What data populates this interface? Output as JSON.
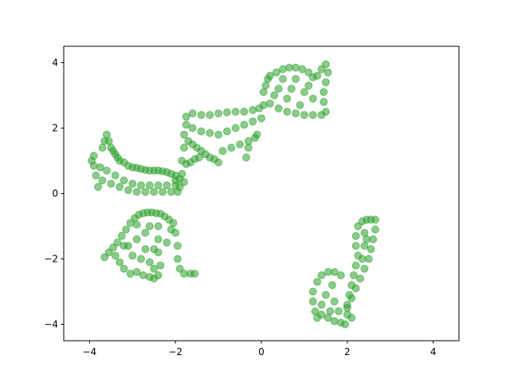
{
  "chart_data": {
    "type": "scatter",
    "title": "",
    "xlabel": "",
    "ylabel": "",
    "xlim": [
      -4.6,
      4.6
    ],
    "ylim": [
      -4.5,
      4.5
    ],
    "grid": false,
    "legend": "none",
    "x_ticks": [
      -4,
      -2,
      0,
      2,
      4
    ],
    "y_ticks": [
      -4,
      -2,
      0,
      2,
      4
    ],
    "x_tick_labels": [
      "−4",
      "−2",
      "0",
      "2",
      "4"
    ],
    "y_tick_labels": [
      "−4",
      "−2",
      "0",
      "2",
      "4"
    ],
    "series": [
      {
        "color": "#2ca02c",
        "alpha": 0.55,
        "points": [
          [
            -3.9,
            1.15
          ],
          [
            -3.95,
            1.0
          ],
          [
            -3.9,
            0.85
          ],
          [
            -3.85,
            0.55
          ],
          [
            -3.8,
            0.2
          ],
          [
            -3.75,
            0.8
          ],
          [
            -3.7,
            1.4
          ],
          [
            -3.65,
            1.6
          ],
          [
            -3.6,
            1.8
          ],
          [
            -3.55,
            1.6
          ],
          [
            -3.5,
            1.4
          ],
          [
            -3.45,
            1.3
          ],
          [
            -3.4,
            1.2
          ],
          [
            -3.35,
            1.1
          ],
          [
            -3.3,
            1.0
          ],
          [
            -3.2,
            0.95
          ],
          [
            -3.1,
            0.85
          ],
          [
            -3.0,
            0.8
          ],
          [
            -2.9,
            0.78
          ],
          [
            -2.8,
            0.75
          ],
          [
            -2.7,
            0.72
          ],
          [
            -2.6,
            0.7
          ],
          [
            -2.5,
            0.7
          ],
          [
            -2.4,
            0.7
          ],
          [
            -2.3,
            0.68
          ],
          [
            -2.2,
            0.65
          ],
          [
            -2.1,
            0.6
          ],
          [
            -2.0,
            0.55
          ],
          [
            -1.9,
            0.45
          ],
          [
            -1.8,
            0.35
          ],
          [
            -3.7,
            0.4
          ],
          [
            -3.5,
            0.3
          ],
          [
            -3.3,
            0.2
          ],
          [
            -3.1,
            0.1
          ],
          [
            -2.9,
            0.05
          ],
          [
            -2.7,
            0.05
          ],
          [
            -2.5,
            0.05
          ],
          [
            -2.3,
            0.05
          ],
          [
            -2.1,
            0.05
          ],
          [
            -1.95,
            0.05
          ],
          [
            -3.6,
            0.7
          ],
          [
            -3.4,
            0.55
          ],
          [
            -3.2,
            0.4
          ],
          [
            -3.0,
            0.3
          ],
          [
            -2.8,
            0.25
          ],
          [
            -2.6,
            0.25
          ],
          [
            -2.4,
            0.25
          ],
          [
            -2.2,
            0.25
          ],
          [
            -2.0,
            0.25
          ],
          [
            -1.85,
            0.6
          ],
          [
            -1.85,
            1.0
          ],
          [
            -1.8,
            1.4
          ],
          [
            -1.8,
            1.8
          ],
          [
            -1.75,
            2.1
          ],
          [
            -1.75,
            2.35
          ],
          [
            -1.6,
            2.45
          ],
          [
            -1.4,
            2.4
          ],
          [
            -1.2,
            2.4
          ],
          [
            -1.0,
            2.45
          ],
          [
            -0.8,
            2.48
          ],
          [
            -0.6,
            2.5
          ],
          [
            -0.4,
            2.5
          ],
          [
            -0.2,
            2.55
          ],
          [
            -0.05,
            2.6
          ],
          [
            0.05,
            2.7
          ],
          [
            -1.7,
            1.6
          ],
          [
            -1.6,
            1.5
          ],
          [
            -1.5,
            1.4
          ],
          [
            -1.4,
            1.3
          ],
          [
            -1.3,
            1.2
          ],
          [
            -1.2,
            1.1
          ],
          [
            -1.1,
            1.05
          ],
          [
            -1.0,
            0.95
          ],
          [
            -0.9,
            1.3
          ],
          [
            -0.7,
            1.4
          ],
          [
            -0.5,
            1.5
          ],
          [
            -0.3,
            1.6
          ],
          [
            -0.15,
            1.7
          ],
          [
            -1.6,
            2.0
          ],
          [
            -1.4,
            1.9
          ],
          [
            -1.2,
            1.85
          ],
          [
            -1.0,
            1.8
          ],
          [
            -0.8,
            1.9
          ],
          [
            -0.6,
            2.0
          ],
          [
            -0.4,
            2.1
          ],
          [
            -0.2,
            2.2
          ],
          [
            -0.35,
            1.1
          ],
          [
            -0.3,
            1.4
          ],
          [
            -0.1,
            1.8
          ],
          [
            0.0,
            2.3
          ],
          [
            -1.75,
            0.9
          ],
          [
            -1.65,
            0.95
          ],
          [
            -1.55,
            1.05
          ],
          [
            -1.45,
            1.1
          ],
          [
            -2.0,
            0.4
          ],
          [
            -1.9,
            0.2
          ],
          [
            0.05,
            3.1
          ],
          [
            0.1,
            3.3
          ],
          [
            0.15,
            3.5
          ],
          [
            0.2,
            3.6
          ],
          [
            0.35,
            3.7
          ],
          [
            0.5,
            3.8
          ],
          [
            0.65,
            3.85
          ],
          [
            0.8,
            3.85
          ],
          [
            0.95,
            3.8
          ],
          [
            1.1,
            3.7
          ],
          [
            1.2,
            3.55
          ],
          [
            1.3,
            3.6
          ],
          [
            1.4,
            3.8
          ],
          [
            1.5,
            3.95
          ],
          [
            1.55,
            3.7
          ],
          [
            1.5,
            3.4
          ],
          [
            1.45,
            3.1
          ],
          [
            1.45,
            2.8
          ],
          [
            1.5,
            2.5
          ],
          [
            1.4,
            2.4
          ],
          [
            1.2,
            2.4
          ],
          [
            1.0,
            2.4
          ],
          [
            0.8,
            2.45
          ],
          [
            0.6,
            2.5
          ],
          [
            0.4,
            2.6
          ],
          [
            0.2,
            2.75
          ],
          [
            0.4,
            3.2
          ],
          [
            0.7,
            3.2
          ],
          [
            1.0,
            3.1
          ],
          [
            1.2,
            2.9
          ],
          [
            0.9,
            2.7
          ],
          [
            0.6,
            2.9
          ],
          [
            0.3,
            3.0
          ],
          [
            0.8,
            3.5
          ],
          [
            1.1,
            3.3
          ],
          [
            0.5,
            3.5
          ],
          [
            -3.65,
            -1.95
          ],
          [
            -3.55,
            -1.8
          ],
          [
            -3.45,
            -1.65
          ],
          [
            -3.35,
            -1.5
          ],
          [
            -3.25,
            -1.3
          ],
          [
            -3.15,
            -1.1
          ],
          [
            -3.05,
            -0.9
          ],
          [
            -2.95,
            -0.75
          ],
          [
            -2.85,
            -0.65
          ],
          [
            -2.75,
            -0.6
          ],
          [
            -2.65,
            -0.58
          ],
          [
            -2.55,
            -0.58
          ],
          [
            -2.45,
            -0.6
          ],
          [
            -2.35,
            -0.62
          ],
          [
            -2.25,
            -0.7
          ],
          [
            -2.15,
            -0.8
          ],
          [
            -2.05,
            -0.9
          ],
          [
            -2.0,
            -1.2
          ],
          [
            -1.95,
            -1.6
          ],
          [
            -1.95,
            -2.0
          ],
          [
            -1.9,
            -2.3
          ],
          [
            -1.8,
            -2.45
          ],
          [
            -1.65,
            -2.45
          ],
          [
            -1.55,
            -2.45
          ],
          [
            -2.4,
            -1.0
          ],
          [
            -2.4,
            -1.4
          ],
          [
            -2.4,
            -1.8
          ],
          [
            -2.35,
            -2.2
          ],
          [
            -2.4,
            -2.5
          ],
          [
            -2.5,
            -2.6
          ],
          [
            -2.6,
            -2.55
          ],
          [
            -2.75,
            -2.5
          ],
          [
            -2.9,
            -2.4
          ],
          [
            -3.05,
            -2.45
          ],
          [
            -3.2,
            -2.3
          ],
          [
            -3.3,
            -2.1
          ],
          [
            -3.4,
            -1.9
          ],
          [
            -3.1,
            -1.6
          ],
          [
            -2.9,
            -1.4
          ],
          [
            -2.7,
            -1.2
          ],
          [
            -2.6,
            -1.0
          ],
          [
            -3.0,
            -1.9
          ],
          [
            -2.8,
            -2.0
          ],
          [
            -2.6,
            -2.1
          ],
          [
            -2.5,
            -1.7
          ],
          [
            -2.7,
            -1.7
          ],
          [
            -3.2,
            -1.6
          ],
          [
            -2.9,
            -0.95
          ],
          [
            -2.5,
            -2.3
          ],
          [
            -2.2,
            -1.5
          ],
          [
            -2.1,
            -1.1
          ],
          [
            1.2,
            -3.0
          ],
          [
            1.2,
            -3.3
          ],
          [
            1.25,
            -3.6
          ],
          [
            1.3,
            -3.8
          ],
          [
            1.4,
            -3.7
          ],
          [
            1.55,
            -3.8
          ],
          [
            1.7,
            -3.9
          ],
          [
            1.85,
            -3.95
          ],
          [
            1.95,
            -4.0
          ],
          [
            2.0,
            -3.7
          ],
          [
            2.0,
            -3.4
          ],
          [
            2.05,
            -3.1
          ],
          [
            2.1,
            -2.8
          ],
          [
            2.15,
            -2.5
          ],
          [
            2.2,
            -2.2
          ],
          [
            2.25,
            -1.9
          ],
          [
            2.2,
            -1.6
          ],
          [
            2.2,
            -1.3
          ],
          [
            2.25,
            -1.0
          ],
          [
            2.35,
            -0.85
          ],
          [
            2.45,
            -0.8
          ],
          [
            2.55,
            -0.8
          ],
          [
            2.65,
            -0.8
          ],
          [
            2.65,
            -1.1
          ],
          [
            2.6,
            -1.4
          ],
          [
            2.55,
            -1.7
          ],
          [
            2.5,
            -2.0
          ],
          [
            2.4,
            -2.3
          ],
          [
            2.3,
            -2.6
          ],
          [
            2.2,
            -2.9
          ],
          [
            2.1,
            -3.2
          ],
          [
            2.0,
            -3.5
          ],
          [
            1.4,
            -2.5
          ],
          [
            1.55,
            -2.4
          ],
          [
            1.7,
            -2.4
          ],
          [
            1.85,
            -2.5
          ],
          [
            1.3,
            -2.7
          ],
          [
            1.5,
            -3.1
          ],
          [
            1.7,
            -3.3
          ],
          [
            1.6,
            -3.6
          ],
          [
            1.8,
            -3.6
          ],
          [
            1.4,
            -3.4
          ],
          [
            2.1,
            -3.8
          ],
          [
            2.4,
            -1.2
          ],
          [
            2.4,
            -1.6
          ],
          [
            2.35,
            -2.0
          ],
          [
            2.45,
            -1.4
          ],
          [
            1.65,
            -2.8
          ]
        ]
      }
    ]
  }
}
